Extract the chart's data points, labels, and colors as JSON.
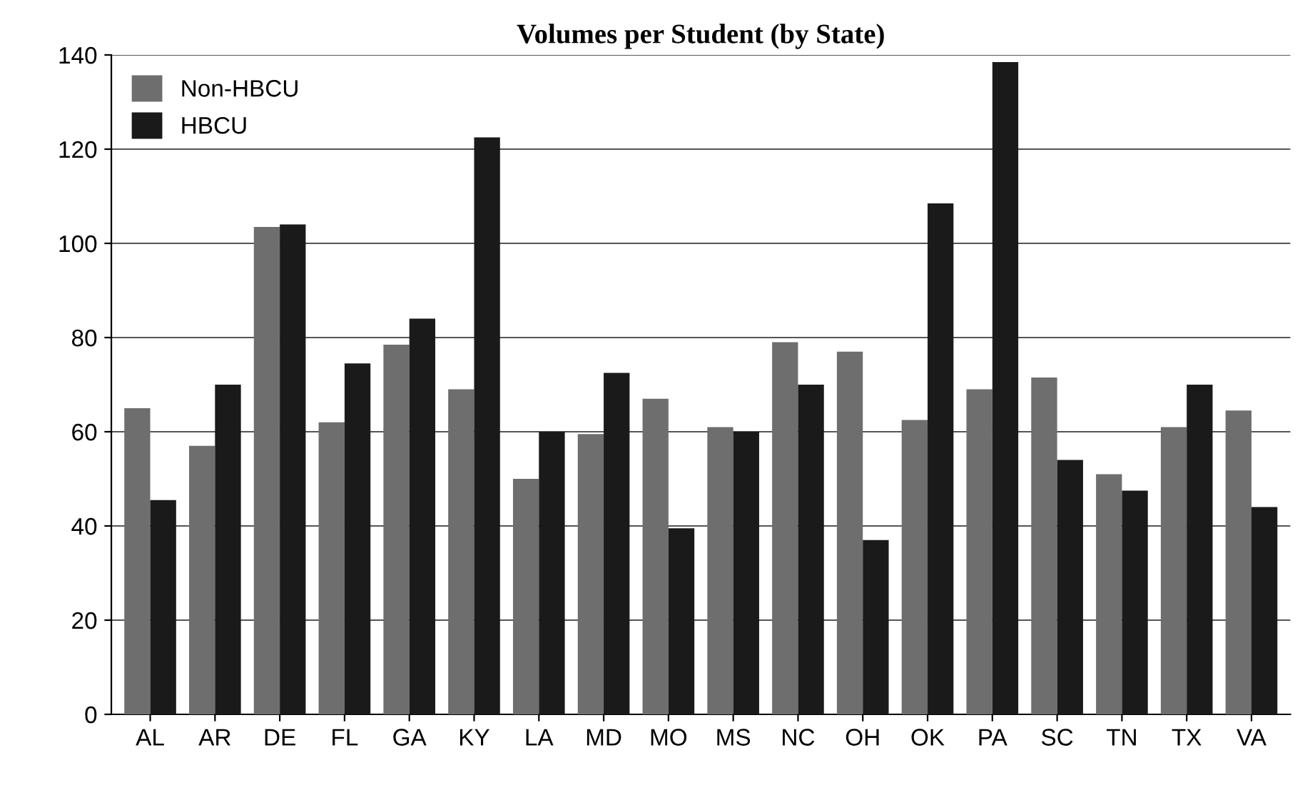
{
  "chart_data": {
    "type": "bar",
    "title": "Volumes per Student (by State)",
    "categories": [
      "AL",
      "AR",
      "DE",
      "FL",
      "GA",
      "KY",
      "LA",
      "MD",
      "MO",
      "MS",
      "NC",
      "OH",
      "OK",
      "PA",
      "SC",
      "TN",
      "TX",
      "VA"
    ],
    "series": [
      {
        "name": "Non-HBCU",
        "color": "#6e6e6e",
        "values": [
          65,
          57,
          103.5,
          62,
          78.5,
          69,
          50,
          59.5,
          67,
          61,
          79,
          77,
          62.5,
          69,
          71.5,
          51,
          61,
          64.5
        ]
      },
      {
        "name": "HBCU",
        "color": "#1a1a1a",
        "values": [
          45.5,
          70,
          104,
          74.5,
          84,
          122.5,
          60,
          72.5,
          39.5,
          60,
          70,
          37,
          108.5,
          138.5,
          54,
          47.5,
          70,
          44
        ]
      }
    ],
    "ylim": [
      0,
      140
    ],
    "yticks": [
      0,
      20,
      40,
      60,
      80,
      100,
      120,
      140
    ],
    "grid": "y",
    "legend": "top left"
  }
}
